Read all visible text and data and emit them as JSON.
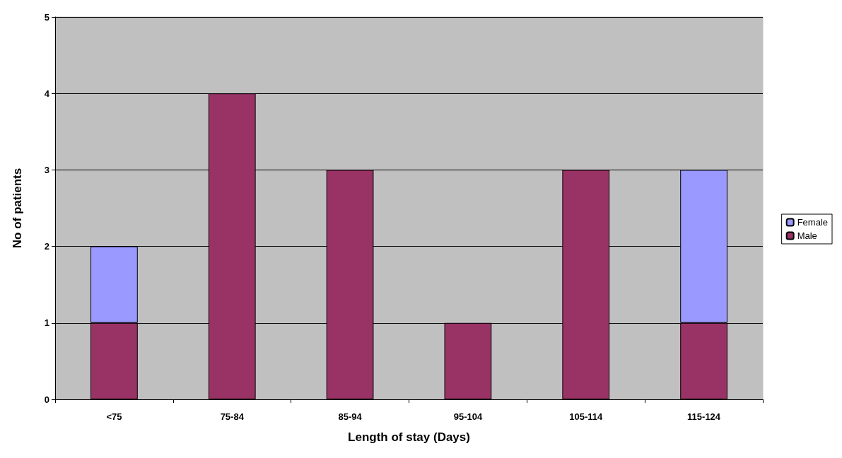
{
  "chart_data": {
    "type": "bar",
    "xlabel": "Length of stay (Days)",
    "ylabel": "No of patients",
    "categories": [
      "<75",
      "75-84",
      "85-94",
      "95-104",
      "105-114",
      "115-124"
    ],
    "series": [
      {
        "name": "Male",
        "color": "#993366",
        "values": [
          1,
          4,
          3,
          1,
          3,
          1
        ]
      },
      {
        "name": "Female",
        "color": "#9999ff",
        "values": [
          1,
          null,
          null,
          null,
          null,
          2
        ]
      }
    ],
    "stacked": true,
    "ylim": [
      0,
      5
    ],
    "yticks": [
      0,
      1,
      2,
      3,
      4,
      5
    ],
    "grid": "y",
    "legend": "right"
  }
}
